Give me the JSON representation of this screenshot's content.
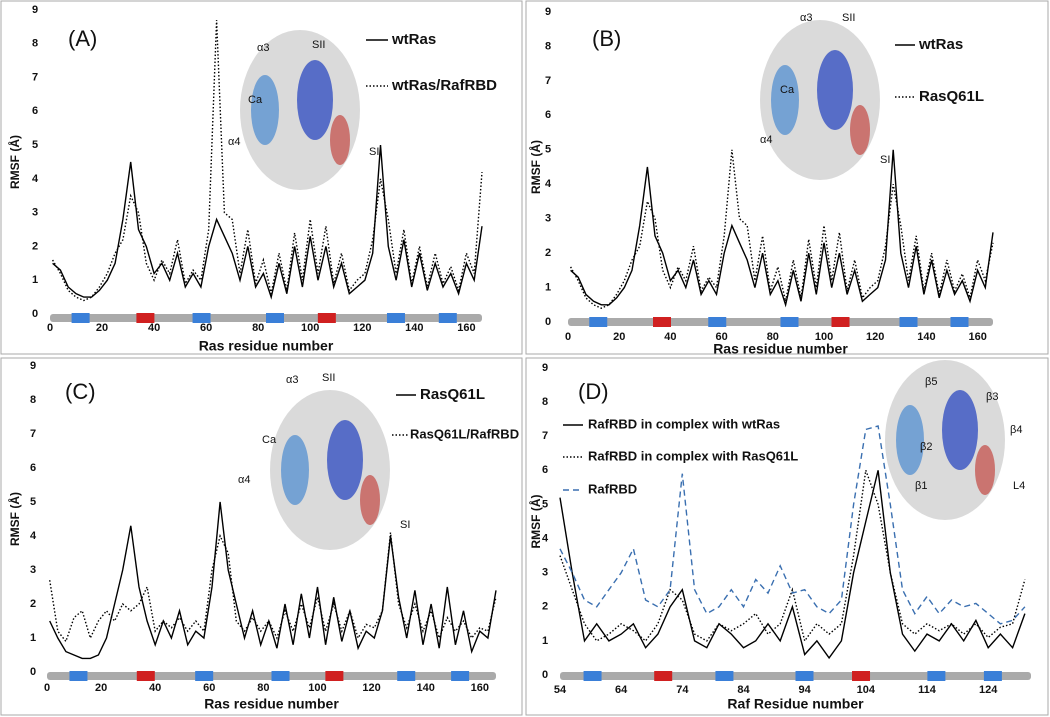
{
  "chart_data": [
    {
      "type": "line",
      "panel_label": "(A)",
      "x_label": "Ras residue number",
      "y_label": "RMSF (Å)",
      "x": [
        1,
        4,
        7,
        10,
        13,
        16,
        19,
        22,
        25,
        28,
        31,
        34,
        37,
        40,
        43,
        46,
        49,
        52,
        55,
        58,
        61,
        64,
        67,
        70,
        73,
        76,
        79,
        82,
        85,
        88,
        91,
        94,
        97,
        100,
        103,
        106,
        109,
        112,
        115,
        118,
        121,
        124,
        127,
        130,
        133,
        136,
        139,
        142,
        145,
        148,
        151,
        154,
        157,
        160,
        163,
        166
      ],
      "xlim": [
        0,
        166
      ],
      "xticks": [
        0,
        20,
        40,
        60,
        80,
        100,
        120,
        140,
        160
      ],
      "ylim": [
        0,
        9
      ],
      "yticks": [
        0,
        1,
        2,
        3,
        4,
        5,
        6,
        7,
        8,
        9
      ],
      "series": [
        {
          "name": "wtRas",
          "color": "#000000",
          "style": "solid",
          "values": [
            1.5,
            1.3,
            0.8,
            0.6,
            0.5,
            0.5,
            0.7,
            1.0,
            1.5,
            2.8,
            4.5,
            2.5,
            2.0,
            1.2,
            1.5,
            1.0,
            1.8,
            0.8,
            1.2,
            0.8,
            2.0,
            2.8,
            2.3,
            1.8,
            1.0,
            2.0,
            0.8,
            1.2,
            0.5,
            1.5,
            0.6,
            2.0,
            0.8,
            2.3,
            1.0,
            2.0,
            0.8,
            1.5,
            0.6,
            0.8,
            1.0,
            1.8,
            5.0,
            2.0,
            1.0,
            2.2,
            0.8,
            1.8,
            0.7,
            1.5,
            0.8,
            1.2,
            0.6,
            1.5,
            1.0,
            2.6
          ]
        },
        {
          "name": "wtRas/RafRBD",
          "color": "#000000",
          "style": "dotted",
          "values": [
            1.6,
            1.2,
            0.7,
            0.5,
            0.4,
            0.5,
            0.8,
            1.2,
            1.8,
            2.2,
            3.5,
            3.0,
            1.5,
            1.0,
            1.6,
            1.2,
            2.2,
            0.9,
            1.3,
            1.0,
            2.5,
            8.7,
            3.0,
            2.8,
            1.2,
            2.5,
            0.9,
            1.6,
            0.6,
            1.8,
            0.7,
            2.4,
            1.0,
            2.8,
            1.2,
            2.6,
            0.9,
            1.8,
            0.7,
            1.0,
            1.2,
            2.2,
            4.0,
            2.8,
            1.2,
            2.5,
            0.9,
            2.0,
            0.8,
            1.8,
            0.9,
            1.4,
            0.7,
            1.8,
            1.2,
            4.2
          ]
        }
      ],
      "annotations": [
        "α3",
        "SII",
        "Ca",
        "α4",
        "SI"
      ]
    },
    {
      "type": "line",
      "panel_label": "(B)",
      "x_label": "Ras residue number",
      "y_label": "RMSF (Å)",
      "x": [
        1,
        4,
        7,
        10,
        13,
        16,
        19,
        22,
        25,
        28,
        31,
        34,
        37,
        40,
        43,
        46,
        49,
        52,
        55,
        58,
        61,
        64,
        67,
        70,
        73,
        76,
        79,
        82,
        85,
        88,
        91,
        94,
        97,
        100,
        103,
        106,
        109,
        112,
        115,
        118,
        121,
        124,
        127,
        130,
        133,
        136,
        139,
        142,
        145,
        148,
        151,
        154,
        157,
        160,
        163,
        166
      ],
      "xlim": [
        0,
        166
      ],
      "xticks": [
        0,
        20,
        40,
        60,
        80,
        100,
        120,
        140,
        160
      ],
      "ylim": [
        0,
        9
      ],
      "yticks": [
        0,
        1,
        2,
        3,
        4,
        5,
        6,
        7,
        8,
        9
      ],
      "series": [
        {
          "name": "wtRas",
          "color": "#000000",
          "style": "solid",
          "values": [
            1.5,
            1.3,
            0.8,
            0.6,
            0.5,
            0.5,
            0.7,
            1.0,
            1.5,
            2.8,
            4.5,
            2.5,
            2.0,
            1.2,
            1.5,
            1.0,
            1.8,
            0.8,
            1.2,
            0.8,
            2.0,
            2.8,
            2.3,
            1.8,
            1.0,
            2.0,
            0.8,
            1.2,
            0.5,
            1.5,
            0.6,
            2.0,
            0.8,
            2.3,
            1.0,
            2.0,
            0.8,
            1.5,
            0.6,
            0.8,
            1.0,
            1.8,
            5.0,
            2.0,
            1.0,
            2.2,
            0.8,
            1.8,
            0.7,
            1.5,
            0.8,
            1.2,
            0.6,
            1.5,
            1.0,
            2.6
          ]
        },
        {
          "name": "RasQ61L",
          "color": "#000000",
          "style": "dotted",
          "values": [
            1.6,
            1.2,
            0.7,
            0.5,
            0.4,
            0.5,
            0.8,
            1.2,
            1.8,
            2.2,
            3.5,
            3.0,
            1.5,
            1.0,
            1.6,
            1.2,
            2.2,
            0.9,
            1.3,
            1.0,
            2.5,
            5.0,
            3.0,
            2.8,
            1.2,
            2.5,
            0.9,
            1.6,
            0.6,
            1.8,
            0.7,
            2.4,
            1.0,
            2.8,
            1.2,
            2.6,
            0.9,
            1.8,
            0.7,
            1.0,
            1.2,
            2.2,
            4.0,
            2.8,
            1.2,
            2.5,
            0.9,
            2.0,
            0.8,
            1.8,
            0.9,
            1.4,
            0.7,
            1.8,
            1.2,
            2.3
          ]
        }
      ],
      "annotations": [
        "α3",
        "SII",
        "Ca",
        "α4",
        "SI"
      ]
    },
    {
      "type": "line",
      "panel_label": "(C)",
      "x_label": "Ras residue number",
      "y_label": "RMSF (Å)",
      "x": [
        1,
        4,
        7,
        10,
        13,
        16,
        19,
        22,
        25,
        28,
        31,
        34,
        37,
        40,
        43,
        46,
        49,
        52,
        55,
        58,
        61,
        64,
        67,
        70,
        73,
        76,
        79,
        82,
        85,
        88,
        91,
        94,
        97,
        100,
        103,
        106,
        109,
        112,
        115,
        118,
        121,
        124,
        127,
        130,
        133,
        136,
        139,
        142,
        145,
        148,
        151,
        154,
        157,
        160,
        163,
        166
      ],
      "xlim": [
        0,
        166
      ],
      "xticks": [
        0,
        20,
        40,
        60,
        80,
        100,
        120,
        140,
        160
      ],
      "ylim": [
        0,
        9
      ],
      "yticks": [
        0,
        1,
        2,
        3,
        4,
        5,
        6,
        7,
        8,
        9
      ],
      "series": [
        {
          "name": "RasQ61L",
          "color": "#000000",
          "style": "solid",
          "values": [
            1.5,
            1.0,
            0.6,
            0.5,
            0.4,
            0.4,
            0.5,
            1.0,
            2.0,
            3.0,
            4.3,
            2.5,
            1.5,
            0.8,
            1.5,
            1.0,
            1.8,
            0.8,
            1.2,
            1.0,
            2.5,
            5.0,
            3.0,
            2.0,
            1.0,
            1.8,
            0.8,
            1.5,
            0.7,
            2.0,
            0.8,
            2.3,
            1.0,
            2.5,
            0.8,
            2.2,
            0.9,
            1.8,
            0.7,
            1.2,
            1.0,
            1.8,
            4.0,
            2.2,
            1.0,
            2.4,
            0.8,
            2.0,
            0.7,
            2.5,
            0.8,
            1.8,
            0.6,
            1.2,
            1.0,
            2.4
          ]
        },
        {
          "name": "RasQ61L/RafRBD",
          "color": "#000000",
          "style": "dotted",
          "values": [
            2.7,
            1.2,
            0.9,
            1.6,
            1.8,
            1.0,
            1.5,
            1.8,
            1.5,
            2.0,
            1.8,
            2.0,
            2.5,
            1.2,
            1.5,
            1.3,
            1.6,
            1.2,
            1.5,
            1.2,
            3.0,
            4.0,
            3.5,
            1.5,
            1.2,
            1.6,
            1.2,
            1.5,
            1.0,
            1.8,
            1.2,
            2.0,
            1.3,
            2.2,
            1.2,
            2.0,
            1.2,
            1.8,
            1.0,
            1.4,
            1.3,
            1.8,
            4.1,
            2.0,
            1.3,
            2.0,
            1.2,
            1.8,
            1.0,
            1.6,
            1.2,
            1.5,
            1.0,
            1.3,
            1.2,
            2.2
          ]
        }
      ],
      "annotations": [
        "α3",
        "SII",
        "Ca",
        "α4",
        "SI"
      ]
    },
    {
      "type": "line",
      "panel_label": "(D)",
      "x_label": "Raf Residue number",
      "y_label": "RMSF (Å)",
      "x": [
        54,
        56,
        58,
        60,
        62,
        64,
        66,
        68,
        70,
        72,
        74,
        76,
        78,
        80,
        82,
        84,
        86,
        88,
        90,
        92,
        94,
        96,
        98,
        100,
        102,
        104,
        106,
        108,
        110,
        112,
        114,
        116,
        118,
        120,
        122,
        124,
        126,
        128,
        130
      ],
      "xlim": [
        54,
        131
      ],
      "xticks": [
        54,
        64,
        74,
        84,
        94,
        104,
        114,
        124
      ],
      "ylim": [
        0,
        9
      ],
      "yticks": [
        0,
        1,
        2,
        3,
        4,
        5,
        6,
        7,
        8,
        9
      ],
      "series": [
        {
          "name": "RafRBD in complex with wtRas",
          "color": "#000000",
          "style": "solid",
          "values": [
            5.2,
            3.0,
            1.0,
            1.5,
            1.0,
            1.2,
            1.5,
            0.8,
            1.2,
            2.0,
            2.5,
            1.0,
            0.8,
            1.5,
            1.2,
            0.8,
            1.0,
            1.5,
            1.0,
            2.0,
            0.6,
            1.0,
            0.5,
            1.0,
            3.0,
            4.5,
            6.0,
            3.0,
            1.2,
            0.7,
            1.2,
            1.0,
            1.5,
            1.0,
            1.6,
            0.8,
            1.2,
            0.8,
            1.8
          ]
        },
        {
          "name": "RafRBD in complex with RasQ61L",
          "color": "#000000",
          "style": "dotted",
          "values": [
            3.5,
            2.5,
            1.5,
            1.0,
            1.2,
            1.5,
            1.3,
            1.0,
            1.5,
            2.5,
            2.2,
            1.2,
            1.0,
            1.5,
            1.3,
            1.5,
            1.8,
            1.2,
            1.5,
            2.5,
            1.0,
            1.5,
            1.2,
            1.5,
            3.5,
            6.0,
            5.0,
            3.0,
            1.5,
            1.2,
            1.5,
            1.3,
            1.5,
            1.2,
            1.5,
            1.1,
            1.4,
            1.5,
            2.8
          ]
        },
        {
          "name": "RafRBD",
          "color": "#3a6fb0",
          "style": "dashed",
          "values": [
            3.7,
            3.0,
            2.2,
            2.0,
            2.5,
            3.0,
            3.7,
            2.2,
            2.0,
            2.5,
            5.9,
            2.5,
            1.8,
            2.0,
            2.5,
            2.0,
            2.8,
            2.4,
            3.2,
            2.4,
            2.5,
            2.0,
            1.8,
            2.2,
            5.0,
            7.2,
            7.3,
            5.0,
            2.5,
            1.8,
            2.3,
            1.8,
            2.2,
            2.0,
            2.1,
            1.8,
            1.5,
            1.6,
            2.0
          ]
        }
      ],
      "annotations": [
        "β5",
        "β3",
        "β4",
        "β2",
        "β1",
        "L4"
      ]
    }
  ]
}
